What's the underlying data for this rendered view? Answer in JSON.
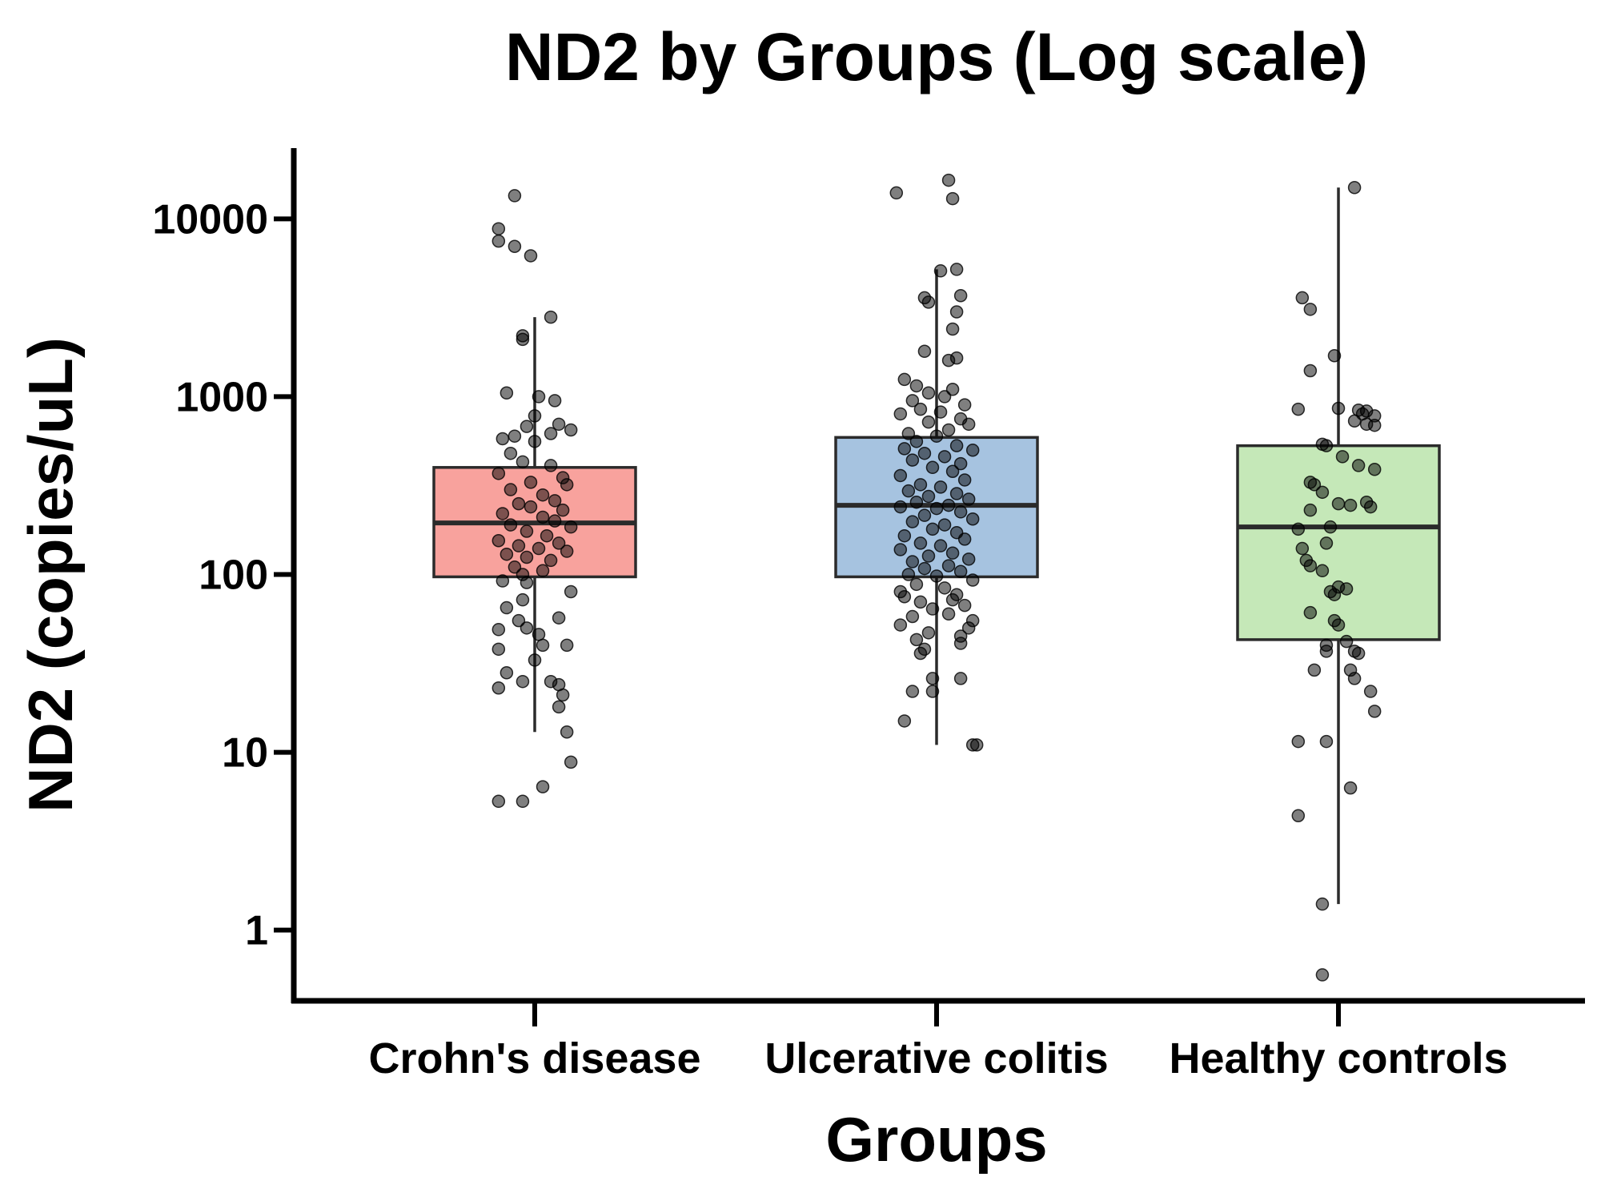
{
  "chart_data": {
    "type": "box",
    "title": "ND2 by Groups (Log scale)",
    "xlabel": "Groups",
    "ylabel": "ND2 (copies/uL)",
    "yscale": "log",
    "ylim": [
      0.4,
      25000
    ],
    "yticks": [
      1,
      10,
      100,
      1000,
      10000
    ],
    "ytick_labels": [
      "1",
      "10",
      "100",
      "1000",
      "10000"
    ],
    "grid": false,
    "legend": "none",
    "categories": [
      "Crohn's disease",
      "Ulcerative colitis",
      "Healthy controls"
    ],
    "groups": [
      {
        "name": "Crohn's disease",
        "color": "#f8a29d",
        "whisker_low": 13,
        "q1": 97,
        "median": 195,
        "q3": 400,
        "whisker_high": 2800,
        "points": [
          {
            "x": -0.05,
            "y": 13500
          },
          {
            "x": -0.09,
            "y": 8800
          },
          {
            "x": -0.09,
            "y": 7500
          },
          {
            "x": -0.05,
            "y": 7000
          },
          {
            "x": -0.01,
            "y": 6200
          },
          {
            "x": 0.04,
            "y": 2800
          },
          {
            "x": -0.03,
            "y": 2200
          },
          {
            "x": -0.03,
            "y": 2100
          },
          {
            "x": -0.07,
            "y": 1050
          },
          {
            "x": 0.01,
            "y": 1000
          },
          {
            "x": 0.05,
            "y": 950
          },
          {
            "x": 0.0,
            "y": 780
          },
          {
            "x": 0.06,
            "y": 700
          },
          {
            "x": -0.02,
            "y": 680
          },
          {
            "x": 0.09,
            "y": 650
          },
          {
            "x": 0.04,
            "y": 620
          },
          {
            "x": -0.05,
            "y": 600
          },
          {
            "x": -0.08,
            "y": 580
          },
          {
            "x": 0.0,
            "y": 560
          },
          {
            "x": -0.06,
            "y": 480
          },
          {
            "x": -0.03,
            "y": 430
          },
          {
            "x": 0.04,
            "y": 410
          },
          {
            "x": -0.09,
            "y": 370
          },
          {
            "x": 0.07,
            "y": 350
          },
          {
            "x": -0.01,
            "y": 330
          },
          {
            "x": 0.08,
            "y": 320
          },
          {
            "x": -0.06,
            "y": 300
          },
          {
            "x": 0.02,
            "y": 280
          },
          {
            "x": 0.05,
            "y": 260
          },
          {
            "x": -0.04,
            "y": 250
          },
          {
            "x": -0.01,
            "y": 240
          },
          {
            "x": 0.07,
            "y": 230
          },
          {
            "x": -0.08,
            "y": 220
          },
          {
            "x": 0.02,
            "y": 210
          },
          {
            "x": 0.05,
            "y": 200
          },
          {
            "x": -0.06,
            "y": 190
          },
          {
            "x": 0.09,
            "y": 185
          },
          {
            "x": -0.02,
            "y": 175
          },
          {
            "x": 0.03,
            "y": 165
          },
          {
            "x": -0.09,
            "y": 155
          },
          {
            "x": 0.06,
            "y": 150
          },
          {
            "x": -0.04,
            "y": 145
          },
          {
            "x": 0.01,
            "y": 140
          },
          {
            "x": 0.08,
            "y": 135
          },
          {
            "x": -0.07,
            "y": 130
          },
          {
            "x": -0.02,
            "y": 125
          },
          {
            "x": 0.04,
            "y": 120
          },
          {
            "x": -0.05,
            "y": 110
          },
          {
            "x": 0.02,
            "y": 105
          },
          {
            "x": -0.03,
            "y": 100
          },
          {
            "x": -0.08,
            "y": 92
          },
          {
            "x": -0.02,
            "y": 90
          },
          {
            "x": 0.09,
            "y": 80
          },
          {
            "x": -0.03,
            "y": 72
          },
          {
            "x": -0.07,
            "y": 65
          },
          {
            "x": 0.06,
            "y": 57
          },
          {
            "x": -0.04,
            "y": 55
          },
          {
            "x": -0.02,
            "y": 50
          },
          {
            "x": -0.09,
            "y": 49
          },
          {
            "x": 0.01,
            "y": 46
          },
          {
            "x": 0.02,
            "y": 40
          },
          {
            "x": 0.08,
            "y": 40
          },
          {
            "x": -0.09,
            "y": 38
          },
          {
            "x": 0.0,
            "y": 33
          },
          {
            "x": -0.07,
            "y": 28
          },
          {
            "x": -0.03,
            "y": 25
          },
          {
            "x": 0.04,
            "y": 25
          },
          {
            "x": 0.06,
            "y": 24
          },
          {
            "x": -0.09,
            "y": 23
          },
          {
            "x": 0.07,
            "y": 21
          },
          {
            "x": 0.06,
            "y": 18
          },
          {
            "x": 0.08,
            "y": 13
          },
          {
            "x": 0.09,
            "y": 8.8
          },
          {
            "x": 0.02,
            "y": 6.4
          },
          {
            "x": -0.09,
            "y": 5.3
          },
          {
            "x": -0.03,
            "y": 5.3
          }
        ]
      },
      {
        "name": "Ulcerative colitis",
        "color": "#a6c3e0",
        "whisker_low": 11,
        "q1": 97,
        "median": 245,
        "q3": 590,
        "whisker_high": 5200,
        "points": [
          {
            "x": 0.03,
            "y": 16500
          },
          {
            "x": -0.1,
            "y": 14000
          },
          {
            "x": 0.04,
            "y": 13000
          },
          {
            "x": 0.05,
            "y": 5200
          },
          {
            "x": 0.01,
            "y": 5100
          },
          {
            "x": 0.06,
            "y": 3700
          },
          {
            "x": -0.03,
            "y": 3600
          },
          {
            "x": -0.02,
            "y": 3400
          },
          {
            "x": 0.05,
            "y": 3000
          },
          {
            "x": 0.04,
            "y": 2400
          },
          {
            "x": -0.03,
            "y": 1800
          },
          {
            "x": 0.05,
            "y": 1650
          },
          {
            "x": 0.03,
            "y": 1600
          },
          {
            "x": -0.08,
            "y": 1250
          },
          {
            "x": -0.05,
            "y": 1150
          },
          {
            "x": 0.04,
            "y": 1100
          },
          {
            "x": -0.02,
            "y": 1050
          },
          {
            "x": 0.02,
            "y": 1000
          },
          {
            "x": -0.06,
            "y": 950
          },
          {
            "x": 0.07,
            "y": 900
          },
          {
            "x": -0.04,
            "y": 850
          },
          {
            "x": 0.01,
            "y": 820
          },
          {
            "x": -0.09,
            "y": 800
          },
          {
            "x": 0.06,
            "y": 750
          },
          {
            "x": -0.02,
            "y": 720
          },
          {
            "x": 0.08,
            "y": 700
          },
          {
            "x": 0.03,
            "y": 650
          },
          {
            "x": -0.07,
            "y": 620
          },
          {
            "x": 0.0,
            "y": 600
          },
          {
            "x": -0.05,
            "y": 560
          },
          {
            "x": 0.05,
            "y": 530
          },
          {
            "x": -0.08,
            "y": 510
          },
          {
            "x": 0.09,
            "y": 500
          },
          {
            "x": -0.03,
            "y": 480
          },
          {
            "x": 0.02,
            "y": 460
          },
          {
            "x": -0.06,
            "y": 440
          },
          {
            "x": 0.06,
            "y": 420
          },
          {
            "x": -0.01,
            "y": 400
          },
          {
            "x": 0.04,
            "y": 380
          },
          {
            "x": -0.09,
            "y": 360
          },
          {
            "x": 0.07,
            "y": 340
          },
          {
            "x": -0.04,
            "y": 320
          },
          {
            "x": 0.01,
            "y": 310
          },
          {
            "x": -0.07,
            "y": 295
          },
          {
            "x": 0.05,
            "y": 285
          },
          {
            "x": -0.02,
            "y": 275
          },
          {
            "x": 0.08,
            "y": 265
          },
          {
            "x": -0.05,
            "y": 255
          },
          {
            "x": 0.03,
            "y": 245
          },
          {
            "x": -0.09,
            "y": 240
          },
          {
            "x": 0.0,
            "y": 235
          },
          {
            "x": 0.06,
            "y": 225
          },
          {
            "x": -0.03,
            "y": 215
          },
          {
            "x": 0.09,
            "y": 205
          },
          {
            "x": -0.06,
            "y": 198
          },
          {
            "x": 0.02,
            "y": 190
          },
          {
            "x": -0.01,
            "y": 180
          },
          {
            "x": 0.05,
            "y": 172
          },
          {
            "x": -0.08,
            "y": 165
          },
          {
            "x": 0.07,
            "y": 158
          },
          {
            "x": -0.04,
            "y": 150
          },
          {
            "x": 0.01,
            "y": 145
          },
          {
            "x": -0.09,
            "y": 138
          },
          {
            "x": 0.04,
            "y": 132
          },
          {
            "x": -0.02,
            "y": 127
          },
          {
            "x": 0.08,
            "y": 122
          },
          {
            "x": -0.06,
            "y": 118
          },
          {
            "x": 0.03,
            "y": 112
          },
          {
            "x": -0.03,
            "y": 108
          },
          {
            "x": 0.06,
            "y": 104
          },
          {
            "x": -0.07,
            "y": 100
          },
          {
            "x": 0.0,
            "y": 98
          },
          {
            "x": 0.09,
            "y": 93
          },
          {
            "x": -0.05,
            "y": 88
          },
          {
            "x": 0.02,
            "y": 84
          },
          {
            "x": -0.09,
            "y": 80
          },
          {
            "x": 0.05,
            "y": 77
          },
          {
            "x": -0.08,
            "y": 75
          },
          {
            "x": 0.04,
            "y": 72
          },
          {
            "x": -0.04,
            "y": 70
          },
          {
            "x": 0.07,
            "y": 67
          },
          {
            "x": -0.01,
            "y": 64
          },
          {
            "x": 0.03,
            "y": 60
          },
          {
            "x": -0.06,
            "y": 58
          },
          {
            "x": 0.09,
            "y": 55
          },
          {
            "x": -0.09,
            "y": 52
          },
          {
            "x": 0.08,
            "y": 50
          },
          {
            "x": -0.02,
            "y": 47
          },
          {
            "x": 0.06,
            "y": 45
          },
          {
            "x": -0.05,
            "y": 43
          },
          {
            "x": 0.06,
            "y": 41
          },
          {
            "x": -0.03,
            "y": 38
          },
          {
            "x": -0.04,
            "y": 36
          },
          {
            "x": -0.01,
            "y": 26
          },
          {
            "x": 0.06,
            "y": 26
          },
          {
            "x": -0.06,
            "y": 22
          },
          {
            "x": -0.01,
            "y": 22
          },
          {
            "x": -0.08,
            "y": 15
          },
          {
            "x": 0.1,
            "y": 11
          },
          {
            "x": 0.09,
            "y": 11
          }
        ]
      },
      {
        "name": "Healthy controls",
        "color": "#c5e8b8",
        "whisker_low": 1.4,
        "q1": 43,
        "median": 185,
        "q3": 530,
        "whisker_high": 15000,
        "points": [
          {
            "x": 0.04,
            "y": 15000
          },
          {
            "x": -0.09,
            "y": 3600
          },
          {
            "x": -0.07,
            "y": 3100
          },
          {
            "x": -0.01,
            "y": 1700
          },
          {
            "x": -0.07,
            "y": 1400
          },
          {
            "x": -0.1,
            "y": 850
          },
          {
            "x": 0.0,
            "y": 860
          },
          {
            "x": 0.05,
            "y": 840
          },
          {
            "x": 0.07,
            "y": 830
          },
          {
            "x": 0.06,
            "y": 800
          },
          {
            "x": 0.09,
            "y": 780
          },
          {
            "x": 0.04,
            "y": 730
          },
          {
            "x": 0.07,
            "y": 700
          },
          {
            "x": 0.09,
            "y": 690
          },
          {
            "x": -0.04,
            "y": 540
          },
          {
            "x": -0.03,
            "y": 530
          },
          {
            "x": 0.01,
            "y": 460
          },
          {
            "x": 0.05,
            "y": 410
          },
          {
            "x": 0.09,
            "y": 390
          },
          {
            "x": -0.07,
            "y": 330
          },
          {
            "x": -0.06,
            "y": 320
          },
          {
            "x": -0.04,
            "y": 290
          },
          {
            "x": 0.0,
            "y": 250
          },
          {
            "x": 0.07,
            "y": 255
          },
          {
            "x": 0.08,
            "y": 240
          },
          {
            "x": -0.07,
            "y": 230
          },
          {
            "x": 0.03,
            "y": 245
          },
          {
            "x": -0.1,
            "y": 180
          },
          {
            "x": -0.02,
            "y": 185
          },
          {
            "x": -0.03,
            "y": 150
          },
          {
            "x": -0.09,
            "y": 140
          },
          {
            "x": -0.08,
            "y": 120
          },
          {
            "x": -0.07,
            "y": 112
          },
          {
            "x": -0.04,
            "y": 105
          },
          {
            "x": 0.0,
            "y": 85
          },
          {
            "x": 0.02,
            "y": 83
          },
          {
            "x": -0.02,
            "y": 80
          },
          {
            "x": -0.01,
            "y": 77
          },
          {
            "x": -0.07,
            "y": 61
          },
          {
            "x": -0.01,
            "y": 55
          },
          {
            "x": 0.0,
            "y": 52
          },
          {
            "x": 0.02,
            "y": 42
          },
          {
            "x": -0.03,
            "y": 40
          },
          {
            "x": 0.05,
            "y": 36
          },
          {
            "x": -0.03,
            "y": 37
          },
          {
            "x": 0.04,
            "y": 37
          },
          {
            "x": -0.06,
            "y": 29
          },
          {
            "x": 0.03,
            "y": 29
          },
          {
            "x": 0.04,
            "y": 26
          },
          {
            "x": 0.08,
            "y": 22
          },
          {
            "x": 0.09,
            "y": 17
          },
          {
            "x": -0.1,
            "y": 11.5
          },
          {
            "x": -0.03,
            "y": 11.5
          },
          {
            "x": 0.03,
            "y": 6.3
          },
          {
            "x": -0.1,
            "y": 4.4
          },
          {
            "x": -0.04,
            "y": 1.4
          },
          {
            "x": -0.04,
            "y": 0.56
          }
        ]
      }
    ]
  }
}
